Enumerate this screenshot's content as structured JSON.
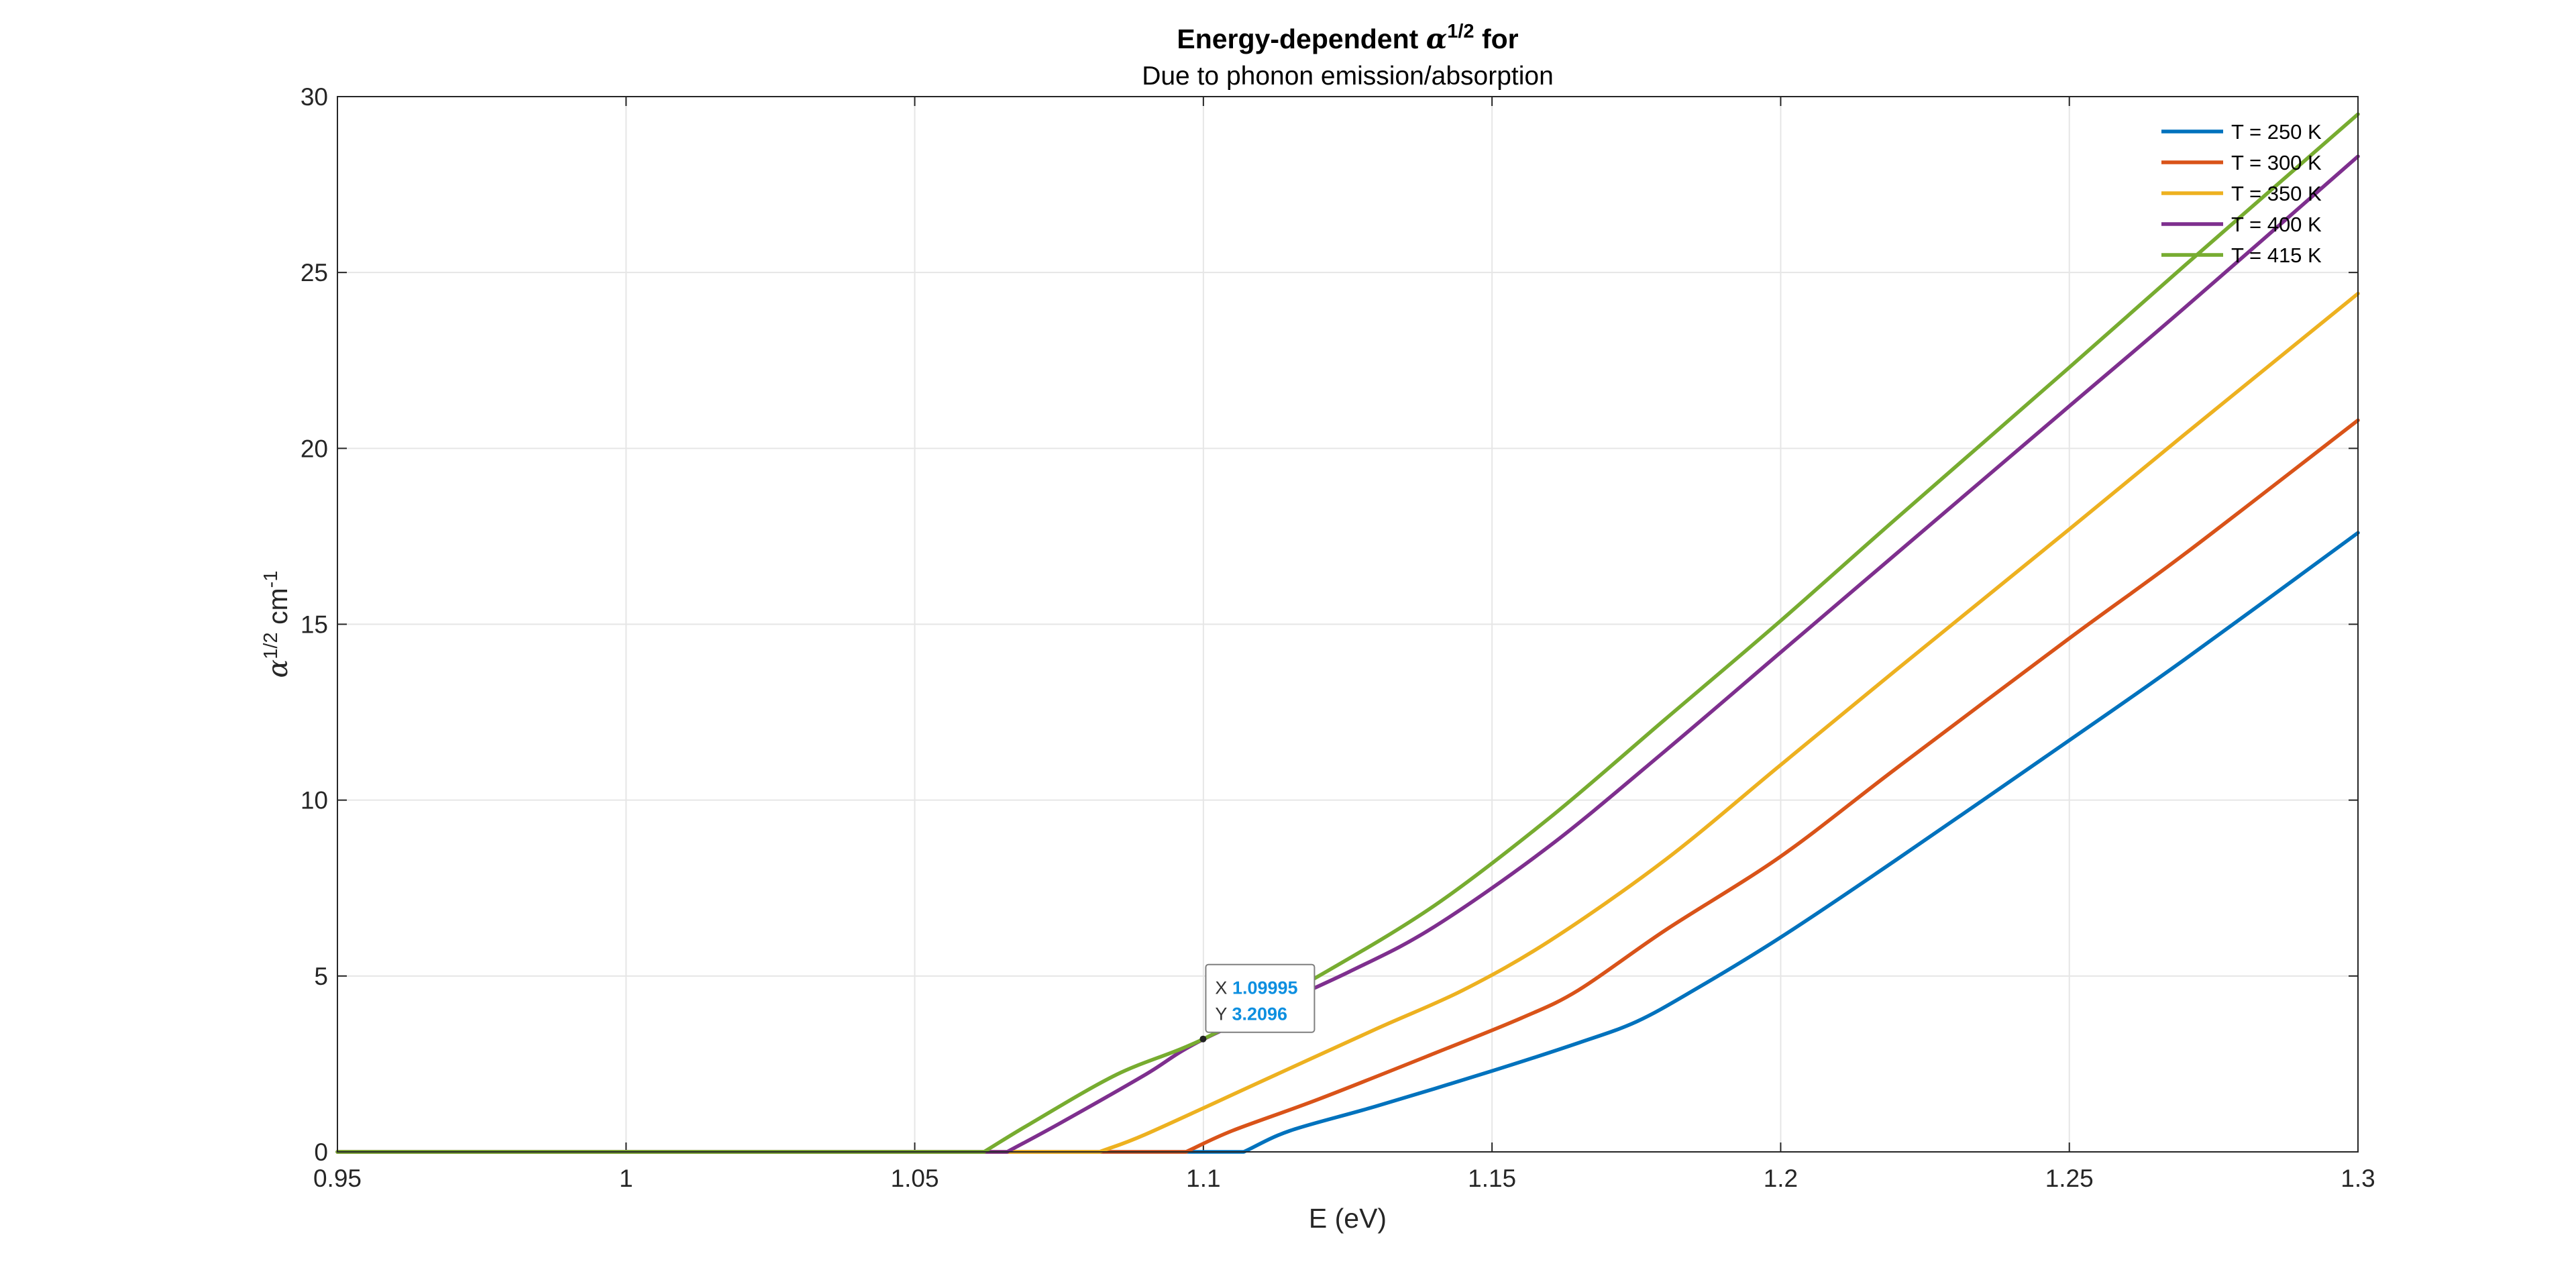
{
  "chart_data": {
    "type": "line",
    "title_prefix": "Energy-dependent ",
    "title_symbol": "α",
    "title_sup": "1/2",
    "title_suffix": " for",
    "subtitle": "Due to phonon emission/absorption",
    "xlabel": "E (eV)",
    "ylabel": {
      "symbol": "α",
      "sup1": "1/2",
      "unit": " cm",
      "sup2": "-1"
    },
    "xlim": [
      0.95,
      1.3
    ],
    "ylim": [
      0,
      30
    ],
    "xticks": [
      0.95,
      1.0,
      1.05,
      1.1,
      1.15,
      1.2,
      1.25,
      1.3
    ],
    "xtick_labels": [
      "0.95",
      "1",
      "1.05",
      "1.1",
      "1.15",
      "1.2",
      "1.25",
      "1.3"
    ],
    "yticks": [
      0,
      5,
      10,
      15,
      20,
      25,
      30
    ],
    "ytick_labels": [
      "0",
      "5",
      "10",
      "15",
      "20",
      "25",
      "30"
    ],
    "grid": true,
    "legend_position": "top-right",
    "series": [
      {
        "name": "T = 250 K",
        "color": "#0072BD",
        "points": [
          [
            0.95,
            0
          ],
          [
            1.107,
            0
          ],
          [
            1.115,
            0.6
          ],
          [
            1.13,
            1.3
          ],
          [
            1.15,
            2.3
          ],
          [
            1.165,
            3.1
          ],
          [
            1.175,
            3.7
          ],
          [
            1.185,
            4.6
          ],
          [
            1.2,
            6.1
          ],
          [
            1.22,
            8.3
          ],
          [
            1.25,
            11.7
          ],
          [
            1.27,
            14.0
          ],
          [
            1.3,
            17.6
          ]
        ]
      },
      {
        "name": "T = 300 K",
        "color": "#D95319",
        "points": [
          [
            0.95,
            0
          ],
          [
            1.097,
            0
          ],
          [
            1.105,
            0.6
          ],
          [
            1.12,
            1.5
          ],
          [
            1.14,
            2.8
          ],
          [
            1.155,
            3.8
          ],
          [
            1.165,
            4.6
          ],
          [
            1.18,
            6.3
          ],
          [
            1.2,
            8.4
          ],
          [
            1.22,
            10.9
          ],
          [
            1.25,
            14.6
          ],
          [
            1.27,
            17.0
          ],
          [
            1.3,
            20.8
          ]
        ]
      },
      {
        "name": "T = 350 K",
        "color": "#EDB120",
        "points": [
          [
            0.95,
            0
          ],
          [
            1.082,
            0
          ],
          [
            1.09,
            0.5
          ],
          [
            1.11,
            2.0
          ],
          [
            1.13,
            3.5
          ],
          [
            1.145,
            4.6
          ],
          [
            1.16,
            6.0
          ],
          [
            1.18,
            8.3
          ],
          [
            1.2,
            11.0
          ],
          [
            1.22,
            13.7
          ],
          [
            1.25,
            17.7
          ],
          [
            1.27,
            20.4
          ],
          [
            1.3,
            24.4
          ]
        ]
      },
      {
        "name": "T = 400 K",
        "color": "#7E2F8E",
        "points": [
          [
            0.95,
            0
          ],
          [
            1.066,
            0
          ],
          [
            1.075,
            0.8
          ],
          [
            1.09,
            2.2
          ],
          [
            1.1,
            3.2
          ],
          [
            1.125,
            5.1
          ],
          [
            1.14,
            6.4
          ],
          [
            1.16,
            8.7
          ],
          [
            1.18,
            11.4
          ],
          [
            1.2,
            14.2
          ],
          [
            1.22,
            17.0
          ],
          [
            1.25,
            21.2
          ],
          [
            1.27,
            24.0
          ],
          [
            1.3,
            28.3
          ]
        ]
      },
      {
        "name": "T = 415 K",
        "color": "#77AC30",
        "points": [
          [
            0.95,
            0
          ],
          [
            1.062,
            0
          ],
          [
            1.07,
            0.8
          ],
          [
            1.085,
            2.2
          ],
          [
            1.1,
            3.2096
          ],
          [
            1.12,
            5.0
          ],
          [
            1.14,
            7.0
          ],
          [
            1.16,
            9.5
          ],
          [
            1.18,
            12.3
          ],
          [
            1.2,
            15.1
          ],
          [
            1.22,
            18.0
          ],
          [
            1.25,
            22.3
          ],
          [
            1.27,
            25.2
          ],
          [
            1.3,
            29.5
          ]
        ]
      }
    ],
    "datatip": {
      "x": 1.09995,
      "y": 3.2096,
      "x_label": "X",
      "x_value": "1.09995",
      "y_label": "Y",
      "y_value": "3.2096"
    }
  }
}
